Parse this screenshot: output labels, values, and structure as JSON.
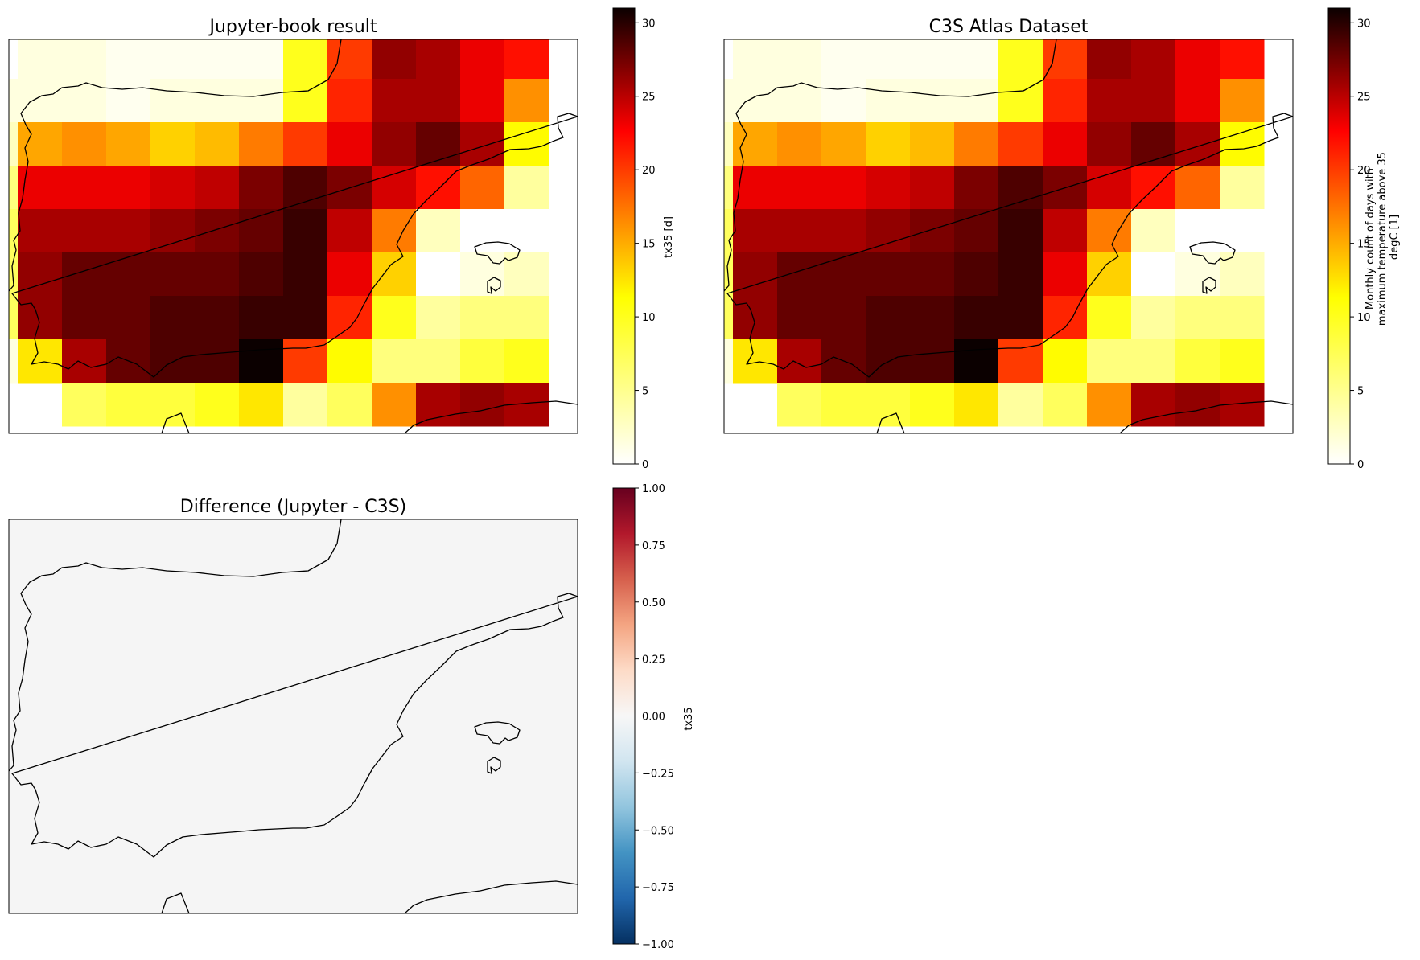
{
  "chart_data": [
    {
      "type": "heatmap",
      "title": "Jupyter-book result",
      "colormap": "hot_r",
      "colorbar": {
        "label": "tx35 [d]",
        "range": [
          0,
          31
        ],
        "ticks": [
          0,
          5,
          10,
          15,
          20,
          25,
          30
        ]
      },
      "grid_rows": 9,
      "grid_cols": 13,
      "values": [
        [
          null,
          1,
          1,
          0.5,
          0.5,
          0.5,
          0.5,
          7,
          17,
          25,
          24,
          21,
          19
        ],
        [
          1,
          1,
          1,
          0.5,
          1,
          1,
          1,
          7,
          18,
          24,
          24,
          21,
          13
        ],
        [
          2,
          12,
          13,
          12,
          10,
          11,
          14,
          17,
          21,
          25,
          27,
          24,
          8
        ],
        [
          4,
          21,
          21,
          21,
          22,
          23,
          26,
          28,
          26,
          22,
          19,
          15,
          3
        ],
        [
          5,
          24,
          24,
          24,
          25,
          26,
          27,
          29,
          23,
          14,
          2,
          0,
          0
        ],
        [
          5,
          25,
          27,
          27,
          27,
          27,
          28,
          29,
          21,
          10,
          0,
          1,
          2
        ],
        [
          5,
          25,
          27,
          27,
          28,
          28,
          29,
          29,
          18,
          7,
          3,
          4,
          4
        ],
        [
          1,
          9,
          24,
          27,
          28,
          28,
          31,
          17,
          8,
          4,
          4,
          6,
          7
        ],
        [
          null,
          null,
          5,
          6,
          6,
          7,
          9,
          3,
          5,
          13,
          24,
          25,
          24
        ]
      ]
    },
    {
      "type": "heatmap",
      "title": "C3S Atlas Dataset",
      "colormap": "hot_r",
      "colorbar": {
        "label_lines": [
          "Monthly count of days with",
          "maximum temperature above 35",
          "degC [1]"
        ],
        "range": [
          0,
          31
        ],
        "ticks": [
          0,
          5,
          10,
          15,
          20,
          25,
          30
        ]
      },
      "grid_rows": 9,
      "grid_cols": 13,
      "values": [
        [
          null,
          1,
          1,
          0.5,
          0.5,
          0.5,
          0.5,
          7,
          17,
          25,
          24,
          21,
          19
        ],
        [
          1,
          1,
          1,
          0.5,
          1,
          1,
          1,
          7,
          18,
          24,
          24,
          21,
          13
        ],
        [
          2,
          12,
          13,
          12,
          10,
          11,
          14,
          17,
          21,
          25,
          27,
          24,
          8
        ],
        [
          4,
          21,
          21,
          21,
          22,
          23,
          26,
          28,
          26,
          22,
          19,
          15,
          3
        ],
        [
          5,
          24,
          24,
          24,
          25,
          26,
          27,
          29,
          23,
          14,
          2,
          0,
          0
        ],
        [
          5,
          25,
          27,
          27,
          27,
          27,
          28,
          29,
          21,
          10,
          0,
          1,
          2
        ],
        [
          5,
          25,
          27,
          27,
          28,
          28,
          29,
          29,
          18,
          7,
          3,
          4,
          4
        ],
        [
          1,
          9,
          24,
          27,
          28,
          28,
          31,
          17,
          8,
          4,
          4,
          6,
          7
        ],
        [
          null,
          null,
          5,
          6,
          6,
          7,
          9,
          3,
          5,
          13,
          24,
          25,
          24
        ]
      ]
    },
    {
      "type": "heatmap",
      "title": "Difference (Jupyter - C3S)",
      "colormap": "RdBu_r",
      "colorbar": {
        "label": "tx35",
        "range": [
          -1,
          1
        ],
        "ticks": [
          "−1.00",
          "−0.75",
          "−0.50",
          "−0.25",
          "0.00",
          "0.25",
          "0.50",
          "0.75",
          "1.00"
        ]
      },
      "uniform_value": 0
    }
  ]
}
